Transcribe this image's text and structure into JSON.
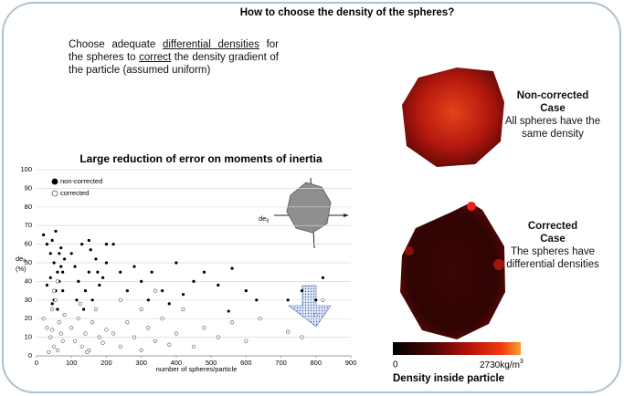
{
  "header": {
    "title": "How to choose the density of the spheres?"
  },
  "intro": {
    "part1": "Choose adequate ",
    "underline1": "differential densities",
    "part2": " for the spheres to ",
    "underline2": "correct",
    "part3": " the density gradient of the particle (assumed uniform)"
  },
  "chart_data": {
    "type": "scatter",
    "title": "Large reduction of error on moments of inertia",
    "xlabel": "number of spheres/particle",
    "ylabel": "de",
    "ylabel_sub": "ij",
    "ylabel_unit": "(%)",
    "inset_label": "de",
    "inset_label_sub": "ij",
    "xlim": [
      0,
      900
    ],
    "ylim": [
      0,
      100
    ],
    "xticks": [
      0,
      100,
      200,
      300,
      400,
      500,
      600,
      700,
      800,
      900
    ],
    "yticks": [
      0,
      10,
      20,
      30,
      40,
      50,
      60,
      70,
      80,
      90,
      100
    ],
    "grid": true,
    "legend": "top-left",
    "series": [
      {
        "name": "non-corrected",
        "color": "#000000",
        "marker": "filled",
        "x": [
          20,
          30,
          40,
          45,
          50,
          55,
          60,
          65,
          70,
          75,
          80,
          50,
          60,
          40,
          70,
          30,
          55,
          65,
          45,
          75,
          100,
          110,
          120,
          130,
          140,
          150,
          160,
          170,
          180,
          190,
          200,
          115,
          135,
          155,
          175,
          220,
          240,
          260,
          280,
          300,
          320,
          330,
          360,
          380,
          400,
          420,
          450,
          480,
          520,
          560,
          600,
          630,
          720,
          760,
          800,
          820,
          550,
          200,
          150
        ],
        "values": [
          65,
          60,
          55,
          62,
          50,
          67,
          45,
          40,
          58,
          35,
          52,
          30,
          25,
          42,
          48,
          38,
          35,
          55,
          28,
          45,
          55,
          48,
          40,
          60,
          35,
          45,
          30,
          52,
          38,
          42,
          50,
          30,
          25,
          57,
          45,
          60,
          45,
          35,
          48,
          40,
          30,
          45,
          35,
          28,
          50,
          33,
          40,
          45,
          38,
          47,
          35,
          30,
          30,
          35,
          30,
          42,
          24,
          60,
          62
        ]
      },
      {
        "name": "corrected",
        "color": "#555555",
        "marker": "open",
        "x": [
          20,
          30,
          40,
          45,
          50,
          55,
          60,
          65,
          70,
          75,
          80,
          35,
          50,
          60,
          45,
          100,
          110,
          120,
          130,
          140,
          150,
          160,
          170,
          180,
          190,
          200,
          125,
          145,
          220,
          240,
          260,
          280,
          300,
          320,
          340,
          360,
          380,
          400,
          420,
          450,
          480,
          520,
          560,
          600,
          640,
          720,
          760,
          800,
          820,
          240,
          340,
          300
        ],
        "values": [
          20,
          15,
          10,
          25,
          5,
          30,
          3,
          18,
          12,
          8,
          22,
          2,
          35,
          40,
          14,
          15,
          8,
          20,
          5,
          12,
          3,
          18,
          25,
          10,
          7,
          14,
          28,
          2,
          12,
          5,
          18,
          10,
          3,
          15,
          8,
          20,
          6,
          12,
          25,
          5,
          15,
          10,
          18,
          8,
          20,
          13,
          10,
          22,
          30,
          30,
          35,
          25
        ]
      }
    ]
  },
  "panels": [
    {
      "title": "Non-corrected Case",
      "text": "All spheres have the same density"
    },
    {
      "title": "Corrected Case",
      "text": "The spheres have differential densities"
    }
  ],
  "colorbar": {
    "min_label": "0",
    "max_label": "2730",
    "unit": "kg/m",
    "unit_sup": "3",
    "title": "Density inside particle"
  }
}
